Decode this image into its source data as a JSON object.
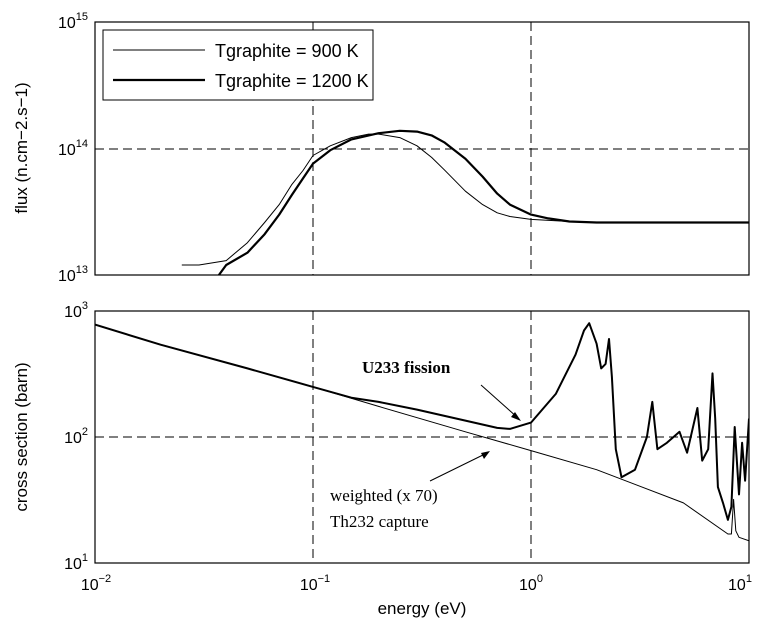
{
  "chart_data": [
    {
      "type": "line",
      "xscale": "log",
      "yscale": "log",
      "xlim": [
        0.01,
        10
      ],
      "ylim": [
        10000000000000.0,
        1000000000000000.0
      ],
      "ylabel": "flux (n.cm−2.s−1)",
      "xlabel": "",
      "y_ticks": [
        {
          "base": "10",
          "exp": "13",
          "value": 10000000000000.0
        },
        {
          "base": "10",
          "exp": "14",
          "value": 100000000000000.0
        },
        {
          "base": "10",
          "exp": "15",
          "value": 1000000000000000.0
        }
      ],
      "grid": "dashed at 10^-1, 10^0 and 10^14",
      "legend": {
        "placement": "top-left",
        "entries": [
          "Tgraphite = 900 K",
          "Tgraphite = 1200 K"
        ]
      },
      "series": [
        {
          "name": "Tgraphite = 900 K",
          "x": [
            0.025,
            0.03,
            0.04,
            0.05,
            0.06,
            0.07,
            0.08,
            0.09,
            0.1,
            0.12,
            0.15,
            0.18,
            0.2,
            0.25,
            0.3,
            0.35,
            0.4,
            0.5,
            0.6,
            0.7,
            0.8,
            1.0,
            1.5,
            2,
            3,
            5,
            10
          ],
          "y": [
            12000000000000.0,
            12000000000000.0,
            13000000000000.0,
            18000000000000.0,
            26000000000000.0,
            36000000000000.0,
            52000000000000.0,
            67000000000000.0,
            88000000000000.0,
            105000000000000.0,
            122000000000000.0,
            130000000000000.0,
            130000000000000.0,
            122000000000000.0,
            105000000000000.0,
            85000000000000.0,
            68000000000000.0,
            46000000000000.0,
            36000000000000.0,
            31000000000000.0,
            29000000000000.0,
            27500000000000.0,
            26500000000000.0,
            26000000000000.0,
            26000000000000.0,
            26000000000000.0,
            26000000000000.0
          ]
        },
        {
          "name": "Tgraphite = 1200 K",
          "x": [
            0.037,
            0.04,
            0.05,
            0.06,
            0.07,
            0.08,
            0.09,
            0.1,
            0.12,
            0.15,
            0.2,
            0.25,
            0.3,
            0.35,
            0.4,
            0.5,
            0.6,
            0.7,
            0.8,
            1.0,
            1.2,
            1.5,
            2,
            3,
            5,
            10
          ],
          "y": [
            10000000000000.0,
            12000000000000.0,
            15000000000000.0,
            21000000000000.0,
            30000000000000.0,
            43000000000000.0,
            58000000000000.0,
            76000000000000.0,
            97000000000000.0,
            118000000000000.0,
            132000000000000.0,
            138000000000000.0,
            136000000000000.0,
            127000000000000.0,
            112000000000000.0,
            83000000000000.0,
            60000000000000.0,
            44000000000000.0,
            36000000000000.0,
            30000000000000.0,
            28000000000000.0,
            26500000000000.0,
            26000000000000.0,
            26000000000000.0,
            26000000000000.0,
            26000000000000.0
          ]
        }
      ]
    },
    {
      "type": "line",
      "xscale": "log",
      "yscale": "log",
      "xlim": [
        0.01,
        10
      ],
      "ylim": [
        10,
        1000
      ],
      "xlabel": "energy (eV)",
      "ylabel": "cross section (barn)",
      "x_ticks": [
        {
          "base": "10",
          "exp": "−2",
          "value": 0.01
        },
        {
          "base": "10",
          "exp": "−1",
          "value": 0.1
        },
        {
          "base": "10",
          "exp": "0",
          "value": 1
        },
        {
          "base": "10",
          "exp": "1",
          "value": 10
        }
      ],
      "y_ticks": [
        {
          "base": "10",
          "exp": "1",
          "value": 10
        },
        {
          "base": "10",
          "exp": "2",
          "value": 100
        },
        {
          "base": "10",
          "exp": "3",
          "value": 1000
        }
      ],
      "grid": "dashed at 10^-1, 10^0 and 10^2",
      "annotations": [
        {
          "text": "U233 fission",
          "style": "bold",
          "points_to": [
            1.0,
            125
          ]
        },
        {
          "lines": [
            "weighted (x 70)",
            "Th232 capture"
          ],
          "points_to": [
            0.8,
            95
          ]
        }
      ],
      "series": [
        {
          "name": "U233 fission",
          "x": [
            0.01,
            0.02,
            0.05,
            0.1,
            0.15,
            0.2,
            0.3,
            0.5,
            0.7,
            0.8,
            1.0,
            1.3,
            1.6,
            1.75,
            1.85,
            2.0,
            2.1,
            2.2,
            2.28,
            2.35,
            2.45,
            2.6,
            3.0,
            3.4,
            3.6,
            3.8,
            4.2,
            4.8,
            5.2,
            5.8,
            6.1,
            6.5,
            6.8,
            7.0,
            7.2,
            7.6,
            8.0,
            8.3,
            8.6,
            9.0,
            9.3,
            9.6,
            10
          ],
          "y": [
            780,
            540,
            350,
            250,
            205,
            190,
            165,
            135,
            118,
            116,
            130,
            220,
            450,
            700,
            800,
            550,
            350,
            380,
            600,
            300,
            80,
            48,
            55,
            100,
            190,
            80,
            90,
            110,
            75,
            170,
            65,
            80,
            320,
            140,
            40,
            30,
            22,
            28,
            120,
            35,
            90,
            45,
            140
          ]
        },
        {
          "name": "weighted (x 70) Th232 capture",
          "x": [
            0.01,
            0.02,
            0.05,
            0.1,
            0.2,
            0.5,
            1.0,
            2.0,
            5.0,
            8.0,
            8.3,
            8.5,
            8.7,
            9.0,
            10
          ],
          "y": [
            780,
            540,
            350,
            250,
            175,
            110,
            78,
            55,
            30,
            17,
            17,
            32,
            18,
            16,
            15
          ]
        }
      ]
    }
  ]
}
